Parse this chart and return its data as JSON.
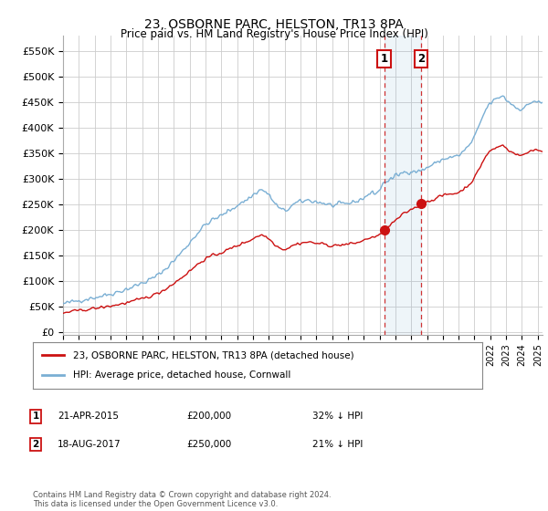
{
  "title": "23, OSBORNE PARC, HELSTON, TR13 8PA",
  "subtitle": "Price paid vs. HM Land Registry's House Price Index (HPI)",
  "ylabel_ticks": [
    "£0",
    "£50K",
    "£100K",
    "£150K",
    "£200K",
    "£250K",
    "£300K",
    "£350K",
    "£400K",
    "£450K",
    "£500K",
    "£550K"
  ],
  "ytick_values": [
    0,
    50000,
    100000,
    150000,
    200000,
    250000,
    300000,
    350000,
    400000,
    450000,
    500000,
    550000
  ],
  "xlim": [
    1995.0,
    2025.3
  ],
  "ylim": [
    -5000,
    580000
  ],
  "hpi_color": "#7aafd4",
  "price_color": "#cc1111",
  "marker1_x": 2015.29,
  "marker1_price": 200000,
  "marker2_x": 2017.62,
  "marker2_price": 250000,
  "legend_property": "23, OSBORNE PARC, HELSTON, TR13 8PA (detached house)",
  "legend_hpi": "HPI: Average price, detached house, Cornwall",
  "footnote": "Contains HM Land Registry data © Crown copyright and database right 2024.\nThis data is licensed under the Open Government Licence v3.0.",
  "sale1_info": [
    "1",
    "21-APR-2015",
    "£200,000",
    "32% ↓ HPI"
  ],
  "sale2_info": [
    "2",
    "18-AUG-2017",
    "£250,000",
    "21% ↓ HPI"
  ],
  "background_color": "#ffffff",
  "grid_color": "#cccccc"
}
